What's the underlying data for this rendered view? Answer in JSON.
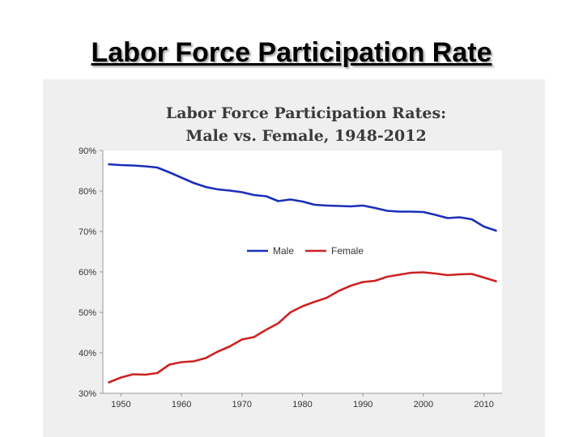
{
  "slide": {
    "title": "Labor Force Participation Rate"
  },
  "chart_data": {
    "type": "line",
    "title_lines": [
      "Labor Force Participation Rates:",
      "Male vs. Female, 1948-2012"
    ],
    "xlabel": "",
    "ylabel": "",
    "xlim": [
      1947,
      2013
    ],
    "ylim": [
      30,
      90
    ],
    "x_ticks": [
      1950,
      1960,
      1970,
      1980,
      1990,
      2000,
      2010
    ],
    "y_ticks": [
      30,
      40,
      50,
      60,
      70,
      80,
      90
    ],
    "y_tick_labels": [
      "30%",
      "40%",
      "50%",
      "60%",
      "70%",
      "80%",
      "90%"
    ],
    "grid": false,
    "legend_position": "center",
    "series": [
      {
        "name": "Male",
        "color": "#1a2fb8",
        "x": [
          1948,
          1950,
          1952,
          1954,
          1956,
          1958,
          1960,
          1962,
          1964,
          1966,
          1968,
          1970,
          1972,
          1974,
          1976,
          1978,
          1980,
          1982,
          1984,
          1986,
          1988,
          1990,
          1992,
          1994,
          1996,
          1998,
          2000,
          2002,
          2004,
          2006,
          2008,
          2010,
          2012
        ],
        "values": [
          86.6,
          86.4,
          86.3,
          86.1,
          85.8,
          84.6,
          83.3,
          82.0,
          81.0,
          80.4,
          80.1,
          79.7,
          79.0,
          78.7,
          77.5,
          77.9,
          77.4,
          76.6,
          76.4,
          76.3,
          76.2,
          76.4,
          75.8,
          75.1,
          74.9,
          74.9,
          74.8,
          74.1,
          73.3,
          73.5,
          73.0,
          71.2,
          70.2
        ]
      },
      {
        "name": "Female",
        "color": "#cc2222",
        "x": [
          1948,
          1950,
          1952,
          1954,
          1956,
          1958,
          1960,
          1962,
          1964,
          1966,
          1968,
          1970,
          1972,
          1974,
          1976,
          1978,
          1980,
          1982,
          1984,
          1986,
          1988,
          1990,
          1992,
          1994,
          1996,
          1998,
          2000,
          2002,
          2004,
          2006,
          2008,
          2010,
          2012
        ],
        "values": [
          32.7,
          33.9,
          34.7,
          34.6,
          35.0,
          37.1,
          37.7,
          37.9,
          38.7,
          40.3,
          41.6,
          43.3,
          43.9,
          45.7,
          47.3,
          50.0,
          51.5,
          52.6,
          53.6,
          55.3,
          56.6,
          57.5,
          57.8,
          58.8,
          59.3,
          59.8,
          59.9,
          59.6,
          59.2,
          59.4,
          59.5,
          58.6,
          57.7
        ]
      }
    ]
  }
}
